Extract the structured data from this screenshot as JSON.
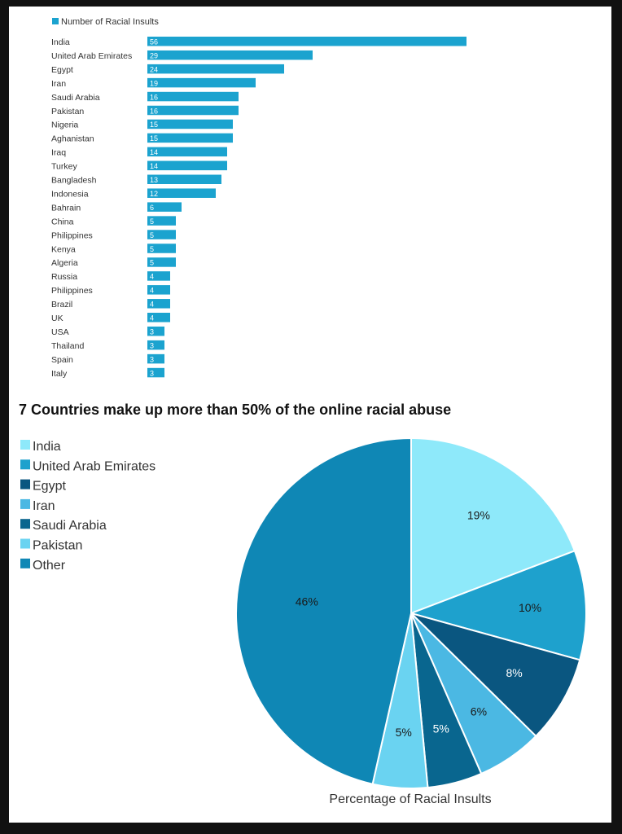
{
  "chart_data": [
    {
      "type": "bar",
      "orientation": "horizontal",
      "legend": "Number of Racial Insults",
      "color": "#1ba3cf",
      "categories": [
        "India",
        "United Arab Emirates",
        "Egypt",
        "Iran",
        "Saudi Arabia",
        "Pakistan",
        "Nigeria",
        "Aghanistan",
        "Iraq",
        "Turkey",
        "Bangladesh",
        "Indonesia",
        "Bahrain",
        "China",
        "Philippines",
        "Kenya",
        "Algeria",
        "Russia",
        "Philippines",
        "Brazil",
        "UK",
        "USA",
        "Thailand",
        "Spain",
        "Italy"
      ],
      "values": [
        56,
        29,
        24,
        19,
        16,
        16,
        15,
        15,
        14,
        14,
        13,
        12,
        6,
        5,
        5,
        5,
        5,
        4,
        4,
        4,
        4,
        3,
        3,
        3,
        3
      ],
      "grid": false
    },
    {
      "type": "pie",
      "title": "7 Countries make up more than 50% of the online racial abuse",
      "xlabel": "Percentage of Racial Insults",
      "legend_position": "top-left",
      "slices": [
        {
          "label": "India",
          "value": 19,
          "text": "19%",
          "color": "#8ee9fa"
        },
        {
          "label": "United Arab Emirates",
          "value": 10,
          "text": "10%",
          "color": "#1ea1cd"
        },
        {
          "label": "Egypt",
          "value": 8,
          "text": "8%",
          "color": "#0a5680"
        },
        {
          "label": "Iran",
          "value": 6,
          "text": "6%",
          "color": "#4bb8e3"
        },
        {
          "label": "Saudi Arabia",
          "value": 5,
          "text": "5%",
          "color": "#09668f"
        },
        {
          "label": "Pakistan",
          "value": 5,
          "text": "5%",
          "color": "#6ad3f1"
        },
        {
          "label": "Other",
          "value": 46,
          "text": "46%",
          "color": "#0f87b5"
        }
      ]
    }
  ]
}
